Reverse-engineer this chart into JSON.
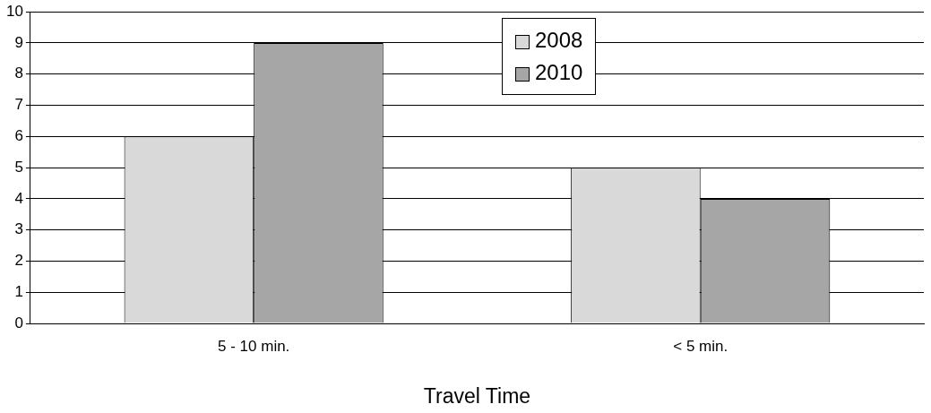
{
  "chart_data": {
    "type": "bar",
    "xlabel": "Travel Time",
    "categories": [
      "5 - 10 min.",
      "< 5 min."
    ],
    "series": [
      {
        "name": "2008",
        "color": "#d9d9d9",
        "values": [
          6,
          5
        ]
      },
      {
        "name": "2010",
        "color": "#a6a6a6",
        "values": [
          9,
          4
        ]
      }
    ],
    "ylim": [
      0,
      10
    ],
    "yticks": [
      0,
      1,
      2,
      3,
      4,
      5,
      6,
      7,
      8,
      9,
      10
    ],
    "grid": "y",
    "legend": "top"
  }
}
